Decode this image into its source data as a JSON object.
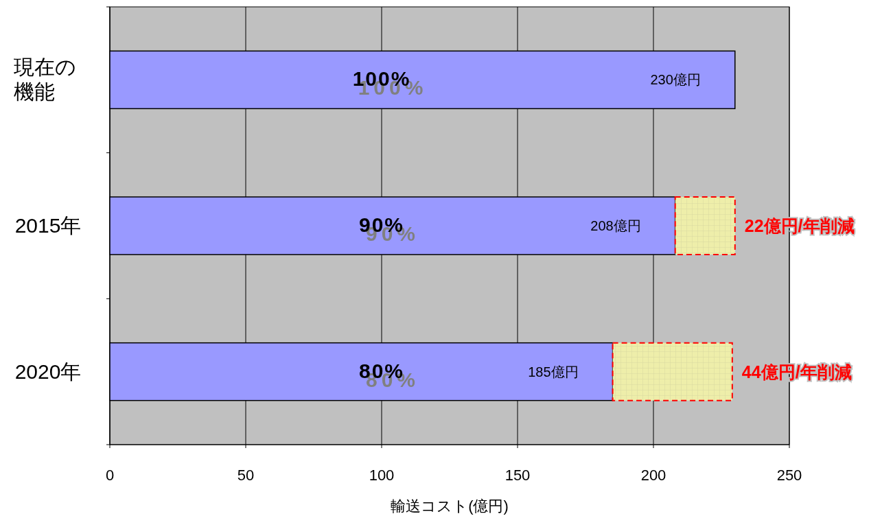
{
  "chart_data": {
    "type": "bar",
    "orientation": "horizontal",
    "stacked": true,
    "categories": [
      "現在の機能",
      "2015年",
      "2020年"
    ],
    "series": [
      {
        "color": "#9999ff",
        "values": [
          230,
          208,
          185
        ],
        "value_labels": [
          "230億円",
          "208億円",
          "185億円"
        ]
      },
      {
        "color": "#eeeeaa",
        "line_style": "dashed",
        "values": [
          null,
          22,
          44
        ],
        "value_labels": [
          null,
          "22億円/年削減",
          "44億円/年削減"
        ]
      }
    ],
    "xlim": [
      0,
      250
    ],
    "xticks": [
      0,
      50,
      100,
      150,
      200,
      250
    ],
    "xlabel": "輸送コスト(億円)",
    "grid": "x",
    "annotations": [
      "100%",
      "90%",
      "80%"
    ]
  }
}
